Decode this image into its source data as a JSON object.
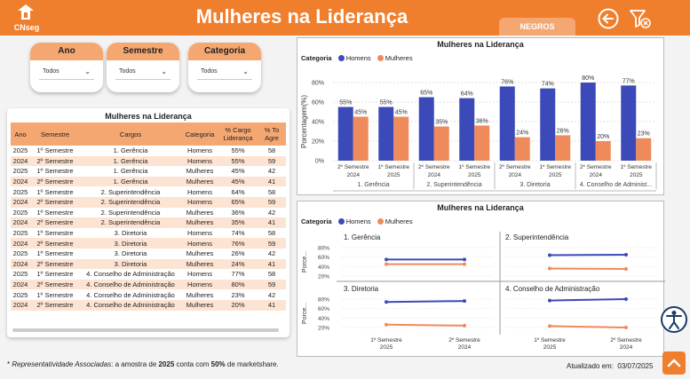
{
  "header": {
    "logo_text": "CNseg",
    "title": "Mulheres na Liderança",
    "tab_label": "NEGROS",
    "colors": {
      "primary": "#f07f2d",
      "light": "#f5a772",
      "homens": "#3b4ab8",
      "mulheres": "#ef8a5a"
    }
  },
  "filters": [
    {
      "label": "Ano",
      "value": "Todos"
    },
    {
      "label": "Semestre",
      "value": "Todos"
    },
    {
      "label": "Categoria",
      "value": "Todos"
    }
  ],
  "table": {
    "title": "Mulheres na Liderança",
    "columns": [
      "Ano",
      "Semestre",
      "Cargos",
      "Categoria",
      "% Cargo Liderança",
      "% To Agre"
    ],
    "rows": [
      [
        "2025",
        "1º Semestre",
        "1. Gerência",
        "Homens",
        "55%",
        "58"
      ],
      [
        "2024",
        "2º Semestre",
        "1. Gerência",
        "Homens",
        "55%",
        "59"
      ],
      [
        "2025",
        "1º Semestre",
        "1. Gerência",
        "Mulheres",
        "45%",
        "42"
      ],
      [
        "2024",
        "2º Semestre",
        "1. Gerência",
        "Mulheres",
        "45%",
        "41"
      ],
      [
        "2025",
        "1º Semestre",
        "2. Superintendência",
        "Homens",
        "64%",
        "58"
      ],
      [
        "2024",
        "2º Semestre",
        "2. Superintendência",
        "Homens",
        "65%",
        "59"
      ],
      [
        "2025",
        "1º Semestre",
        "2. Superintendência",
        "Mulheres",
        "36%",
        "42"
      ],
      [
        "2024",
        "2º Semestre",
        "2. Superintendência",
        "Mulheres",
        "35%",
        "41"
      ],
      [
        "2025",
        "1º Semestre",
        "3. Diretoria",
        "Homens",
        "74%",
        "58"
      ],
      [
        "2024",
        "2º Semestre",
        "3. Diretoria",
        "Homens",
        "76%",
        "59"
      ],
      [
        "2025",
        "1º Semestre",
        "3. Diretoria",
        "Mulheres",
        "26%",
        "42"
      ],
      [
        "2024",
        "2º Semestre",
        "3. Diretoria",
        "Mulheres",
        "24%",
        "41"
      ],
      [
        "2025",
        "1º Semestre",
        "4. Conselho de Administração",
        "Homens",
        "77%",
        "58"
      ],
      [
        "2024",
        "2º Semestre",
        "4. Conselho de Administração",
        "Homens",
        "80%",
        "59"
      ],
      [
        "2025",
        "1º Semestre",
        "4. Conselho de Administração",
        "Mulheres",
        "23%",
        "42"
      ],
      [
        "2024",
        "2º Semestre",
        "4. Conselho de Administração",
        "Mulheres",
        "20%",
        "41"
      ]
    ]
  },
  "chart_data": [
    {
      "type": "bar",
      "title": "Mulheres na Liderança",
      "legend_title": "Categoria",
      "ylabel": "Porcentagem(%)",
      "ylim": [
        0,
        80
      ],
      "yticks": [
        "0%",
        "20%",
        "40%",
        "60%",
        "80%"
      ],
      "categories": [
        "2º Semestre 2024",
        "1º Semestre 2025",
        "2º Semestre 2024",
        "1º Semestre 2025",
        "2º Semestre 2024",
        "1º Semestre 2025",
        "2º Semestre 2024",
        "1º Semestre 2025"
      ],
      "groups": [
        "1. Gerência",
        "2. Superintendência",
        "3. Diretoria",
        "4. Conselho de Administ..."
      ],
      "series": [
        {
          "name": "Homens",
          "values": [
            55,
            55,
            65,
            64,
            76,
            74,
            80,
            77
          ]
        },
        {
          "name": "Mulheres",
          "values": [
            45,
            45,
            35,
            36,
            24,
            26,
            20,
            23
          ]
        }
      ]
    },
    {
      "type": "line",
      "title": "Mulheres na Liderança",
      "legend_title": "Categoria",
      "ylabel": "Porce...",
      "yticks": [
        "20%",
        "40%",
        "60%",
        "80%"
      ],
      "ylim": [
        20,
        80
      ],
      "x": [
        "1º Semestre 2025",
        "2º Semestre 2024"
      ],
      "panels": [
        {
          "name": "1. Gerência",
          "series": [
            {
              "name": "Homens",
              "values": [
                55,
                55
              ]
            },
            {
              "name": "Mulheres",
              "values": [
                45,
                45
              ]
            }
          ]
        },
        {
          "name": "2. Superintendência",
          "series": [
            {
              "name": "Homens",
              "values": [
                64,
                65
              ]
            },
            {
              "name": "Mulheres",
              "values": [
                36,
                35
              ]
            }
          ]
        },
        {
          "name": "3. Diretoria",
          "series": [
            {
              "name": "Homens",
              "values": [
                74,
                76
              ]
            },
            {
              "name": "Mulheres",
              "values": [
                26,
                24
              ]
            }
          ]
        },
        {
          "name": "4. Conselho de Administração",
          "series": [
            {
              "name": "Homens",
              "values": [
                77,
                80
              ]
            },
            {
              "name": "Mulheres",
              "values": [
                23,
                20
              ]
            }
          ]
        }
      ]
    }
  ],
  "footer": {
    "note_prefix": "* ",
    "note_italic": "Representatividade Associadas",
    "note_mid": ": a amostra de ",
    "note_year": "2025",
    "note_mid2": " conta com ",
    "note_pct": "50%",
    "note_end": " de marketshare.",
    "updated_label": "Atualizado em:",
    "updated_date": "03/07/2025"
  }
}
